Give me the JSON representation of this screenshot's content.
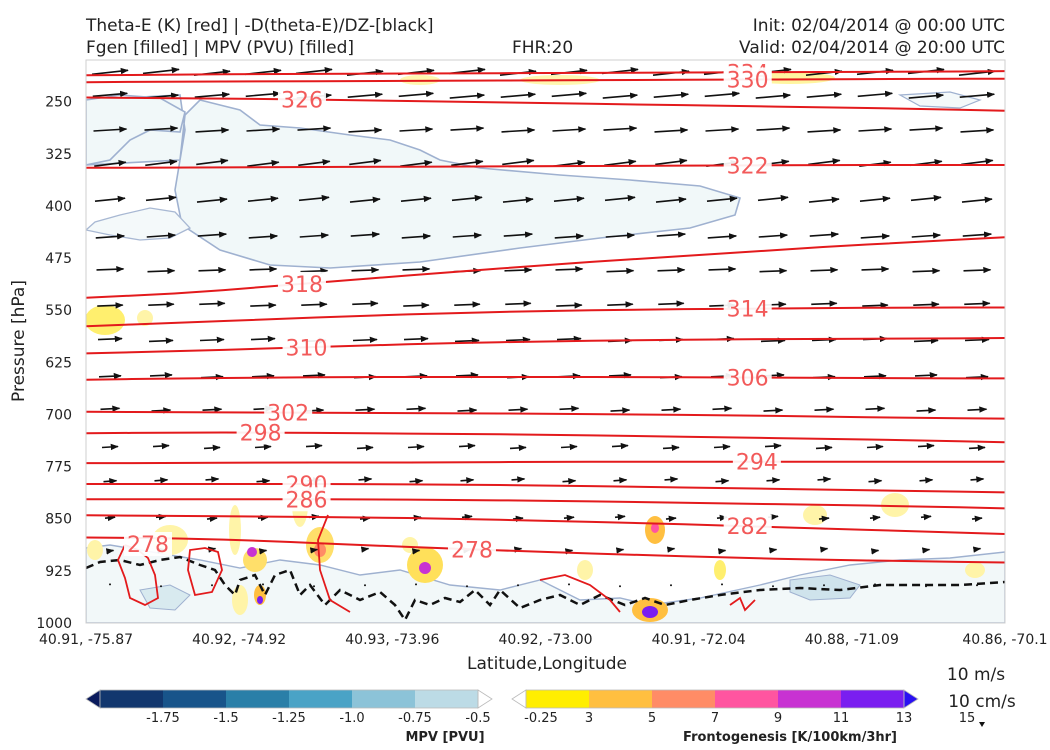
{
  "header": {
    "title_line1_left": "Theta-E (K) [red] | -D(theta-E)/DZ-[black]",
    "title_line2_left": "Fgen [filled] | MPV (PVU) [filled]",
    "fhr": "FHR:20",
    "init": "Init: 02/04/2014 @ 00:00 UTC",
    "valid": "Valid: 02/04/2014 @ 20:00 UTC"
  },
  "chart_data": {
    "type": "cross-section",
    "xlabel": "Latitude,Longitude",
    "ylabel": "Pressure [hPa]",
    "x_ticks": [
      "40.91, -75.87",
      "40.92, -74.92",
      "40.93, -73.96",
      "40.92, -73.00",
      "40.91, -72.04",
      "40.88, -71.09",
      "40.86, -70.1"
    ],
    "y_ticks": [
      250,
      325,
      400,
      475,
      550,
      625,
      700,
      775,
      850,
      925,
      1000
    ],
    "ylim": [
      1000,
      190
    ],
    "y_reversed": true,
    "theta_e_contours": [
      {
        "label": "334",
        "levels": [
          212,
          211,
          210,
          210,
          209,
          209,
          208,
          208,
          207,
          207,
          206
        ]
      },
      {
        "label": "330",
        "levels": [
          222,
          221,
          221,
          220,
          220,
          219,
          219,
          218,
          218,
          217,
          217
        ]
      },
      {
        "label": "326",
        "levels": [
          244,
          245,
          246,
          248,
          250,
          252,
          254,
          256,
          258,
          260,
          263
        ]
      },
      {
        "label": "322",
        "levels": [
          345,
          345,
          344,
          344,
          343,
          343,
          342,
          342,
          341,
          341,
          341
        ]
      },
      {
        "label": "318",
        "levels": [
          532,
          526,
          516,
          505,
          495,
          485,
          476,
          468,
          459,
          452,
          445
        ]
      },
      {
        "label": "314",
        "levels": [
          573,
          568,
          563,
          558,
          554,
          551,
          549,
          548,
          547,
          546,
          546
        ]
      },
      {
        "label": "310",
        "levels": [
          612,
          609,
          605,
          601,
          597,
          595,
          593,
          592,
          591,
          591,
          590
        ]
      },
      {
        "label": "306",
        "levels": [
          650,
          648,
          647,
          646,
          646,
          646,
          646,
          647,
          647,
          648,
          648
        ]
      },
      {
        "label": "302",
        "levels": [
          696,
          697,
          697,
          698,
          698,
          699,
          700,
          701,
          703,
          705,
          706
        ]
      },
      {
        "label": "298",
        "levels": [
          727,
          726,
          726,
          727,
          728,
          729,
          731,
          733,
          735,
          737,
          740
        ]
      },
      {
        "label": "294",
        "levels": [
          770,
          770,
          769,
          769,
          769,
          768,
          768,
          768,
          768,
          768,
          768
        ]
      },
      {
        "label": "290",
        "levels": [
          800,
          800,
          800,
          800,
          801,
          802,
          804,
          806,
          808,
          810,
          812
        ]
      },
      {
        "label": "286",
        "levels": [
          822,
          822,
          822,
          822,
          823,
          824,
          826,
          828,
          830,
          832,
          835
        ]
      },
      {
        "label": "282",
        "levels": [
          845,
          846,
          847,
          848,
          850,
          853,
          856,
          860,
          864,
          868,
          872
        ]
      },
      {
        "label": "278",
        "levels": [
          877,
          878,
          882,
          888,
          893,
          898,
          902,
          906,
          909,
          911,
          913
        ]
      }
    ],
    "mpv_colorbar": {
      "label": "MPV [PVU]",
      "ticks": [
        "-1.75",
        "-1.5",
        "-1.25",
        "-1.0",
        "-0.75",
        "-0.5",
        "-0.25"
      ],
      "colors": [
        "#0a1a5c",
        "#12376e",
        "#18548a",
        "#2a7fa8",
        "#4aa3c6",
        "#8cc3d8",
        "#bcdbe6",
        "#ffffff"
      ]
    },
    "fgen_colorbar": {
      "label": "Frontogenesis [K/100km/3hr]",
      "ticks": [
        "3",
        "5",
        "7",
        "9",
        "11",
        "13",
        "15"
      ],
      "colors": [
        "#ffffff",
        "#ffee00",
        "#ffbf40",
        "#ff8c66",
        "#ff55a0",
        "#c832d2",
        "#7a1ef0",
        "#2a10f2"
      ]
    },
    "vector_key": {
      "horizontal": "10 m/s",
      "vertical": "10 cm/s"
    }
  }
}
